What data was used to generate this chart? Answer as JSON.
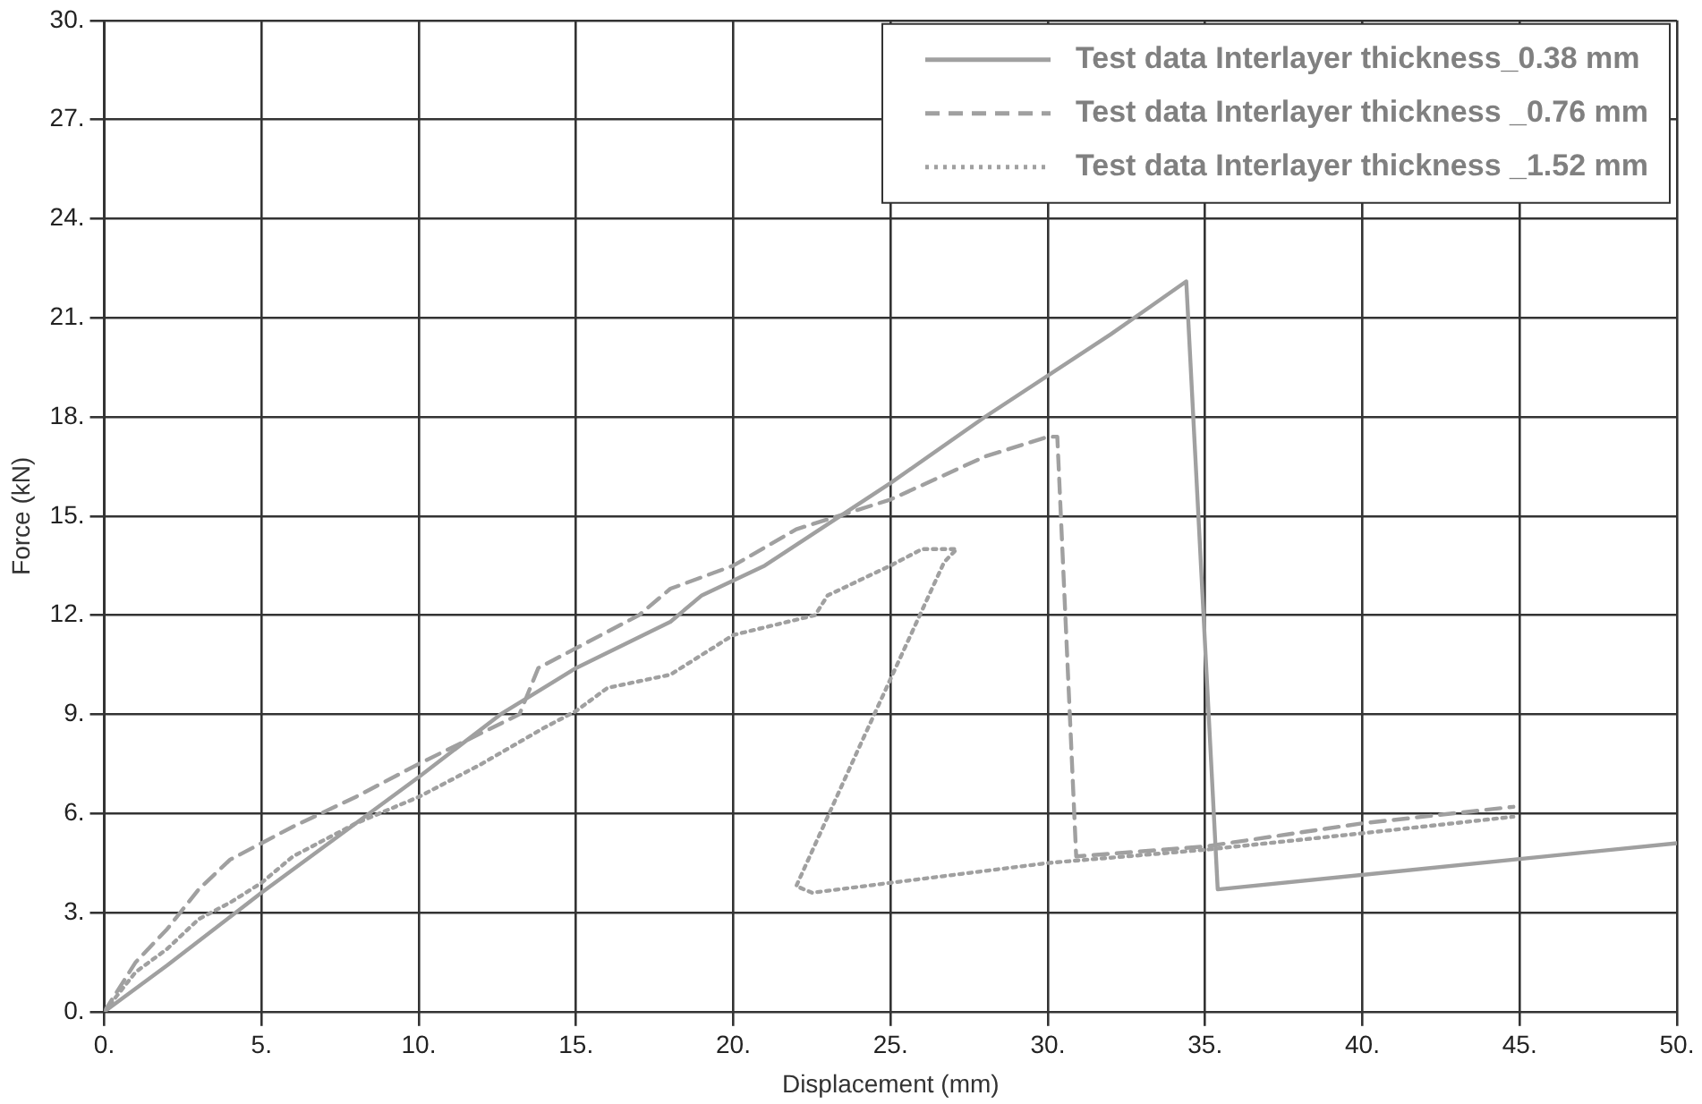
{
  "chart_data": {
    "type": "line",
    "xlabel": "Displacement (mm)",
    "ylabel": "Force (kN)",
    "xlim": [
      0,
      50
    ],
    "ylim": [
      0,
      30
    ],
    "xticks": [
      {
        "value": 0,
        "label": "0."
      },
      {
        "value": 5,
        "label": "5."
      },
      {
        "value": 10,
        "label": "10."
      },
      {
        "value": 15,
        "label": "15."
      },
      {
        "value": 20,
        "label": "20."
      },
      {
        "value": 25,
        "label": "25."
      },
      {
        "value": 30,
        "label": "30."
      },
      {
        "value": 35,
        "label": "35."
      },
      {
        "value": 40,
        "label": "40."
      },
      {
        "value": 45,
        "label": "45."
      },
      {
        "value": 50,
        "label": "50."
      }
    ],
    "yticks": [
      {
        "value": 0,
        "label": "0."
      },
      {
        "value": 3,
        "label": "3."
      },
      {
        "value": 6,
        "label": "6."
      },
      {
        "value": 9,
        "label": "9."
      },
      {
        "value": 12,
        "label": "12."
      },
      {
        "value": 15,
        "label": "15."
      },
      {
        "value": 18,
        "label": "18."
      },
      {
        "value": 21,
        "label": "21."
      },
      {
        "value": 24,
        "label": "24."
      },
      {
        "value": 27,
        "label": "27."
      },
      {
        "value": 30,
        "label": "30."
      }
    ],
    "grid": true,
    "legend": "top right",
    "marker": "none",
    "series": [
      {
        "name": "Test data Interlayer thickness_0.38 mm",
        "color": "#a0a0a0",
        "line_style": "solid",
        "x": [
          0,
          2,
          5,
          10,
          12.6,
          15,
          18,
          19,
          21,
          25,
          28,
          32,
          34.4,
          35.4,
          50
        ],
        "values": [
          0,
          1.4,
          3.6,
          7.1,
          9,
          10.4,
          11.8,
          12.6,
          13.5,
          16,
          18,
          20.5,
          22.1,
          3.7,
          5.1
        ]
      },
      {
        "name": "Test data Interlayer thickness _0.76 mm",
        "color": "#a0a0a0",
        "line_style": "dashed",
        "x": [
          0,
          1,
          2,
          3,
          4,
          5,
          6,
          8,
          10,
          13.2,
          13.8,
          15,
          17,
          18,
          20,
          22,
          25,
          28,
          30,
          30.3,
          30.9,
          35,
          40,
          44.8
        ],
        "values": [
          0,
          1.5,
          2.5,
          3.7,
          4.6,
          5.1,
          5.6,
          6.5,
          7.5,
          9,
          10.4,
          11,
          12,
          12.8,
          13.5,
          14.6,
          15.5,
          16.8,
          17.4,
          17.4,
          4.7,
          5,
          5.7,
          6.2
        ]
      },
      {
        "name": "Test data Interlayer thickness _1.52 mm",
        "color": "#a0a0a0",
        "line_style": "dotted",
        "x": [
          0,
          1,
          2,
          3,
          4,
          5,
          6,
          8,
          10,
          12,
          14,
          15,
          16,
          18,
          19,
          20,
          22.6,
          23,
          25,
          26,
          27.1,
          26.7,
          24,
          22,
          22.5,
          25,
          30,
          35,
          40,
          44.8
        ],
        "values": [
          0,
          1.2,
          1.9,
          2.8,
          3.3,
          3.9,
          4.7,
          5.7,
          6.5,
          7.5,
          8.6,
          9.1,
          9.8,
          10.2,
          10.8,
          11.4,
          12,
          12.6,
          13.5,
          14,
          14,
          13.6,
          8,
          3.8,
          3.6,
          3.9,
          4.5,
          4.9,
          5.4,
          5.9
        ]
      }
    ]
  }
}
